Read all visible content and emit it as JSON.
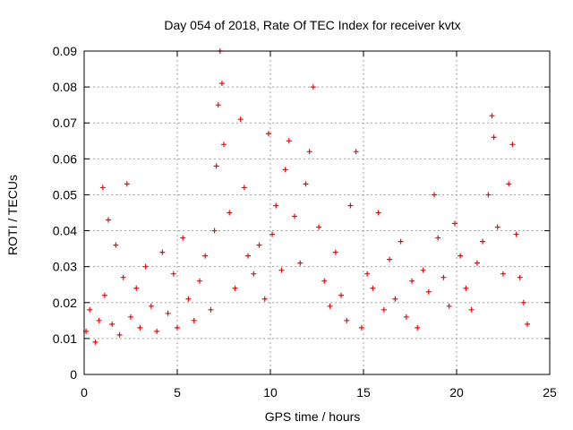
{
  "chart_data": {
    "type": "scatter",
    "title": "Day 054 of 2018, Rate Of TEC Index for receiver kvtx",
    "xlabel": "GPS time / hours",
    "ylabel": "ROTI / TECUs",
    "xlim": [
      0,
      25
    ],
    "ylim": [
      0,
      0.09
    ],
    "x_ticks": [
      0,
      5,
      10,
      15,
      20,
      25
    ],
    "y_ticks": [
      0,
      0.01,
      0.02,
      0.03,
      0.04,
      0.05,
      0.06,
      0.07,
      0.08,
      0.09
    ],
    "x_tick_labels": [
      "0",
      "5",
      "10",
      "15",
      "20",
      "25"
    ],
    "y_tick_labels": [
      "0",
      "0.01",
      "0.02",
      "0.03",
      "0.04",
      "0.05",
      "0.06",
      "0.07",
      "0.08",
      "0.09"
    ],
    "grid": true,
    "marker": "+",
    "marker_color": "#ff0000",
    "series": [
      {
        "name": "ROTI",
        "x": [
          0.1,
          0.3,
          0.6,
          0.8,
          1.0,
          1.1,
          1.3,
          1.5,
          1.7,
          1.9,
          2.1,
          2.3,
          2.5,
          2.8,
          3.0,
          3.3,
          3.6,
          3.9,
          4.2,
          4.5,
          4.8,
          5.0,
          5.3,
          5.6,
          5.9,
          6.2,
          6.5,
          6.8,
          7.0,
          7.1,
          7.2,
          7.3,
          7.4,
          7.5,
          7.8,
          8.1,
          8.4,
          8.6,
          8.8,
          9.1,
          9.4,
          9.7,
          9.9,
          10.1,
          10.3,
          10.6,
          10.8,
          11.0,
          11.3,
          11.6,
          11.9,
          12.1,
          12.3,
          12.6,
          12.9,
          13.2,
          13.5,
          13.8,
          14.1,
          14.3,
          14.6,
          14.9,
          15.2,
          15.5,
          15.8,
          16.1,
          16.4,
          16.7,
          17.0,
          17.3,
          17.6,
          17.9,
          18.2,
          18.5,
          18.8,
          19.0,
          19.3,
          19.6,
          19.9,
          20.2,
          20.5,
          20.8,
          21.1,
          21.4,
          21.7,
          21.9,
          22.0,
          22.2,
          22.5,
          22.8,
          23.0,
          23.2,
          23.4,
          23.6,
          23.8
        ],
        "y": [
          0.012,
          0.018,
          0.009,
          0.015,
          0.052,
          0.022,
          0.043,
          0.014,
          0.036,
          0.011,
          0.027,
          0.053,
          0.016,
          0.024,
          0.013,
          0.03,
          0.019,
          0.012,
          0.034,
          0.017,
          0.028,
          0.013,
          0.038,
          0.021,
          0.015,
          0.026,
          0.033,
          0.018,
          0.04,
          0.058,
          0.075,
          0.09,
          0.081,
          0.064,
          0.045,
          0.024,
          0.071,
          0.052,
          0.033,
          0.028,
          0.036,
          0.021,
          0.067,
          0.039,
          0.047,
          0.029,
          0.057,
          0.065,
          0.044,
          0.031,
          0.053,
          0.062,
          0.08,
          0.041,
          0.026,
          0.019,
          0.034,
          0.022,
          0.015,
          0.047,
          0.062,
          0.013,
          0.028,
          0.024,
          0.045,
          0.018,
          0.032,
          0.021,
          0.037,
          0.016,
          0.026,
          0.013,
          0.029,
          0.023,
          0.05,
          0.038,
          0.027,
          0.019,
          0.042,
          0.033,
          0.024,
          0.018,
          0.031,
          0.037,
          0.05,
          0.072,
          0.066,
          0.041,
          0.028,
          0.053,
          0.064,
          0.039,
          0.027,
          0.02,
          0.014
        ]
      }
    ]
  }
}
